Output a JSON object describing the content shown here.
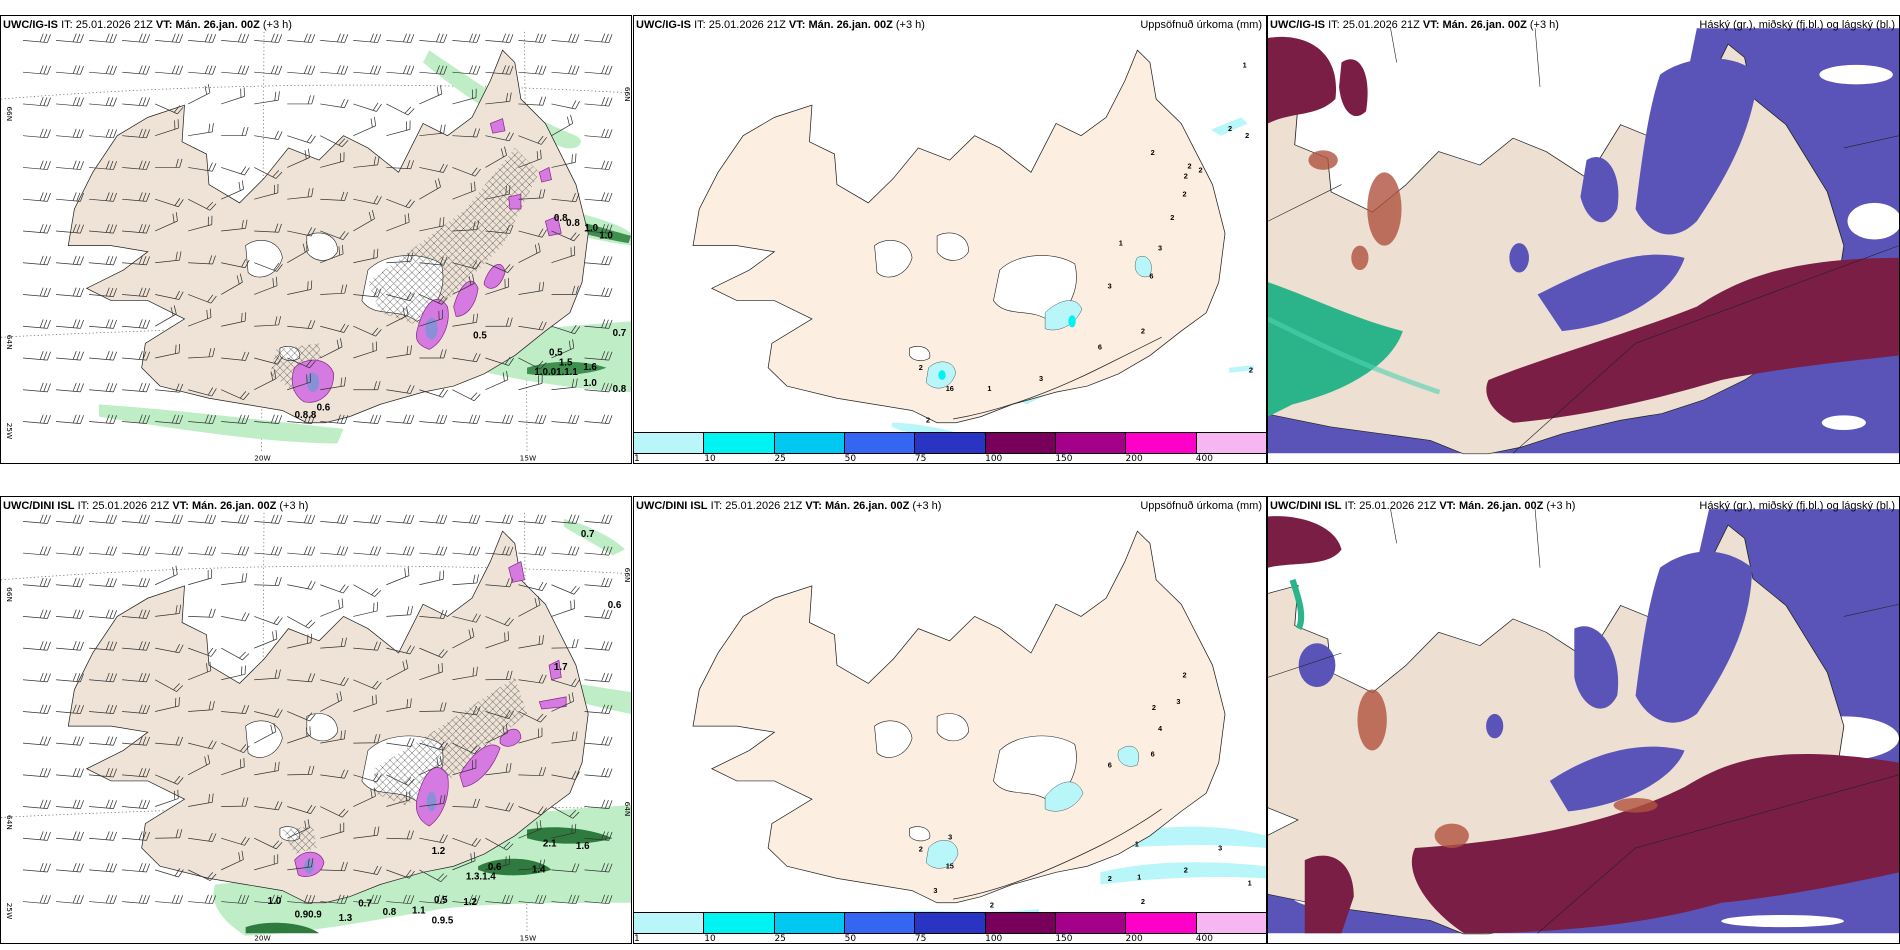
{
  "header": {
    "it_label": "IT:",
    "it": "25.01.2026 21Z",
    "vt_label": "VT:",
    "vt": "Mán. 26.jan. 00Z",
    "lead": "(+3 h)"
  },
  "rows": [
    {
      "model": "UWC/IG-IS"
    },
    {
      "model": "UWC/DINI ISL"
    }
  ],
  "precip_title": "Uppsöfnuð úrkoma (mm)",
  "cloud_title": "Háský (gr.), miðský (fj.bl.) og lágský (bl.)",
  "axes": {
    "lat66": "66N",
    "lat64": "64N",
    "lon25": "25W",
    "lon20": "20W",
    "lon15": "15W"
  },
  "colorbar": {
    "ticks": [
      "1",
      "10",
      "25",
      "50",
      "75",
      "100",
      "150",
      "200",
      "400"
    ],
    "colors": [
      "#b8f6fa",
      "#00f3f3",
      "#00c8f0",
      "#3466f2",
      "#2a34c4",
      "#78005a",
      "#a5008a",
      "#ff00c8",
      "#f5b6f2"
    ]
  },
  "labels": {
    "p1_top": [
      "0.8",
      "0.8",
      "1.0",
      "1.0",
      "0.5",
      "0.7",
      "0.5",
      "1.5",
      "1.6",
      "1.0.01.1.1",
      "1.0",
      "0.8",
      "0.6",
      "0.8.8"
    ],
    "p1_bot": [
      "0.7",
      "0.6",
      "1.7",
      "2.1",
      "1.6",
      "0.6",
      "1.4",
      "1.3.1.4",
      "1.0",
      "0.7",
      "0.5",
      "1.2",
      "0.90.9",
      "1.3",
      "0.8",
      "1.1",
      "0.9.5",
      "1.2"
    ],
    "p2_top": [
      "1",
      "2",
      "2",
      "2",
      "2",
      "2",
      "2",
      "2",
      "2",
      "1",
      "3",
      "6",
      "3",
      "2",
      "6",
      "3",
      "1",
      "2",
      "16",
      "2",
      "2"
    ],
    "p2_bot": [
      "2",
      "2",
      "3",
      "4",
      "6",
      "6",
      "1",
      "3",
      "2",
      "1",
      "2",
      "1",
      "2",
      "2",
      "3",
      "15",
      "3",
      "2"
    ]
  },
  "colors": {
    "land": "#eee3d6",
    "land_precip": "#fbeee0",
    "cloud_high": "#7a1e45",
    "cloud_mid": "#5a54b8",
    "cloud_low": "#bfe0ff"
  }
}
